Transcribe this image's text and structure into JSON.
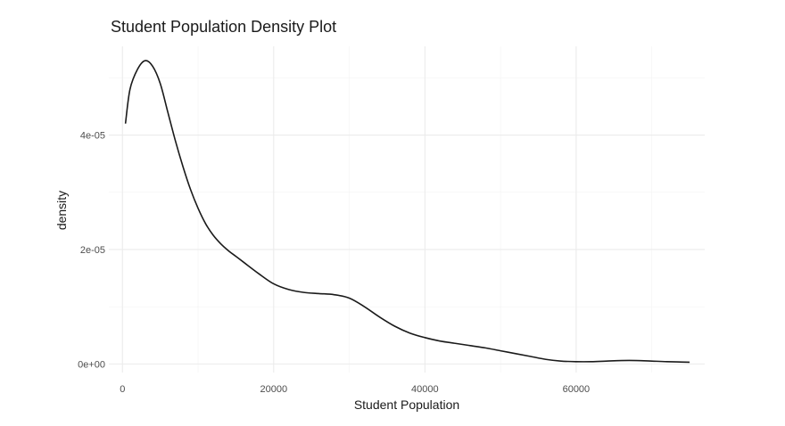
{
  "chart_data": {
    "type": "line",
    "title": "Student Population Density Plot",
    "xlabel": "Student Population",
    "ylabel": "density",
    "xlim": [
      -1800,
      77000
    ],
    "ylim": [
      -1.5e-06,
      5.55e-05
    ],
    "x_ticks": [
      0,
      20000,
      40000,
      60000
    ],
    "x_tick_labels": [
      "0",
      "20000",
      "40000",
      "60000"
    ],
    "y_ticks": [
      0,
      2e-05,
      4e-05
    ],
    "y_tick_labels": [
      "0e+00",
      "2e-05",
      "4e-05"
    ],
    "grid": true,
    "series": [
      {
        "x": [
          400,
          1000,
          2000,
          3000,
          4000,
          5000,
          6000,
          7000,
          8000,
          9000,
          10000,
          11000,
          12000,
          13000,
          14000,
          15000,
          16000,
          18000,
          20000,
          22000,
          24000,
          26000,
          28000,
          30000,
          32000,
          34000,
          36000,
          38000,
          40000,
          42000,
          44000,
          46000,
          48000,
          50000,
          52000,
          54000,
          56000,
          58000,
          60000,
          62000,
          64000,
          66000,
          68000,
          70000,
          72000,
          75000
        ],
        "y": [
          4.2e-05,
          4.8e-05,
          5.15e-05,
          5.3e-05,
          5.2e-05,
          4.9e-05,
          4.4e-05,
          3.9e-05,
          3.45e-05,
          3.05e-05,
          2.72e-05,
          2.45e-05,
          2.25e-05,
          2.1e-05,
          1.98e-05,
          1.88e-05,
          1.78e-05,
          1.58e-05,
          1.4e-05,
          1.3e-05,
          1.25e-05,
          1.23e-05,
          1.21e-05,
          1.15e-05,
          1e-05,
          8.2e-06,
          6.6e-06,
          5.4e-06,
          4.6e-06,
          4e-06,
          3.6e-06,
          3.2e-06,
          2.8e-06,
          2.3e-06,
          1.8e-06,
          1.3e-06,
          8e-07,
          5e-07,
          4e-07,
          4e-07,
          5e-07,
          6e-07,
          6e-07,
          5e-07,
          4e-07,
          3e-07
        ]
      }
    ]
  }
}
